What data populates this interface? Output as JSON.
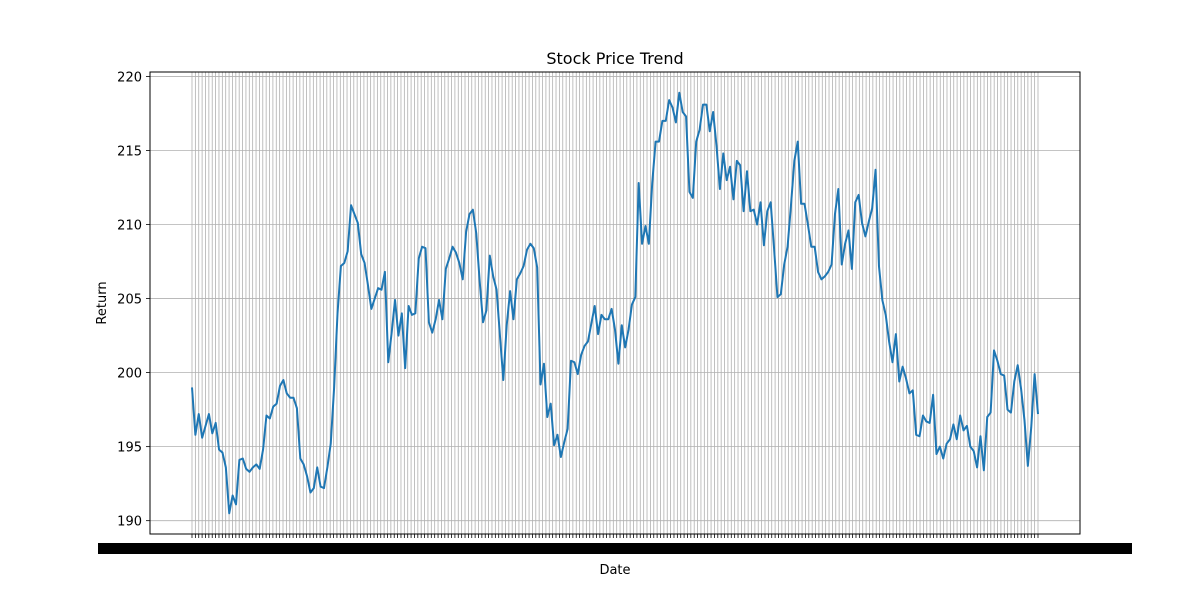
{
  "chart_data": {
    "type": "line",
    "title": "Stock Price Trend",
    "xlabel": "Date",
    "ylabel": "Return",
    "ylim": [
      189.1,
      220.3
    ],
    "yticks": [
      190,
      195,
      200,
      205,
      210,
      215,
      220
    ],
    "grid": true,
    "line_color": "#1f77b4",
    "grid_color": "#b0b0b0",
    "x_tick_count": 252,
    "series": [
      {
        "values": [
          199.0,
          195.8,
          197.2,
          195.6,
          196.4,
          197.2,
          195.9,
          196.6,
          194.8,
          194.6,
          193.6,
          190.5,
          191.7,
          191.1,
          194.1,
          194.2,
          193.5,
          193.3,
          193.6,
          193.8,
          193.5,
          194.8,
          197.1,
          196.9,
          197.7,
          197.9,
          199.1,
          199.5,
          198.6,
          198.3,
          198.3,
          197.6,
          194.2,
          193.8,
          193.0,
          191.9,
          192.2,
          193.6,
          192.3,
          192.2,
          193.6,
          195.2,
          199.0,
          204.0,
          207.2,
          207.4,
          208.2,
          211.3,
          210.7,
          210.1,
          208.0,
          207.4,
          205.9,
          204.3,
          205.0,
          205.7,
          205.6,
          206.8,
          200.7,
          202.7,
          204.9,
          202.5,
          204.0,
          200.3,
          204.5,
          203.9,
          204.0,
          207.7,
          208.5,
          208.4,
          203.4,
          202.7,
          203.6,
          204.9,
          203.6,
          207.0,
          207.7,
          208.5,
          208.1,
          207.4,
          206.3,
          209.5,
          210.7,
          211.0,
          209.4,
          206.2,
          203.4,
          204.2,
          207.9,
          206.5,
          205.6,
          202.5,
          199.5,
          203.2,
          205.5,
          203.6,
          206.3,
          206.7,
          207.2,
          208.3,
          208.7,
          208.4,
          207.1,
          199.2,
          200.6,
          197.0,
          197.9,
          195.1,
          195.8,
          194.3,
          195.3,
          196.2,
          200.8,
          200.7,
          199.9,
          201.2,
          201.8,
          202.1,
          203.3,
          204.5,
          202.6,
          203.9,
          203.6,
          203.6,
          204.3,
          202.9,
          200.6,
          203.2,
          201.7,
          202.9,
          204.6,
          205.1,
          212.8,
          208.7,
          209.9,
          208.7,
          212.8,
          215.6,
          215.6,
          217.0,
          217.0,
          218.4,
          217.9,
          216.9,
          218.9,
          217.6,
          217.3,
          212.2,
          211.8,
          215.6,
          216.4,
          218.1,
          218.1,
          216.3,
          217.6,
          215.3,
          212.4,
          214.8,
          213.0,
          213.9,
          211.7,
          214.3,
          214.0,
          210.9,
          213.6,
          210.9,
          211.0,
          210.0,
          211.5,
          208.6,
          210.9,
          211.5,
          208.4,
          205.1,
          205.3,
          207.3,
          208.5,
          211.3,
          214.3,
          215.6,
          211.4,
          211.4,
          210.0,
          208.5,
          208.5,
          206.8,
          206.3,
          206.5,
          206.8,
          207.3,
          210.7,
          212.4,
          207.3,
          208.7,
          209.6,
          207.0,
          211.5,
          212.0,
          210.1,
          209.2,
          210.2,
          211.1,
          213.7,
          207.2,
          204.9,
          203.9,
          202.1,
          200.7,
          202.6,
          199.4,
          200.4,
          199.6,
          198.6,
          198.8,
          195.8,
          195.7,
          197.1,
          196.7,
          196.6,
          198.5,
          194.5,
          195.0,
          194.2,
          195.2,
          195.5,
          196.5,
          195.5,
          197.1,
          196.1,
          196.4,
          195.0,
          194.7,
          193.6,
          195.7,
          193.4,
          197.0,
          197.3,
          201.5,
          200.8,
          199.9,
          199.8,
          197.5,
          197.3,
          199.4,
          200.5,
          198.9,
          196.8,
          193.7,
          196.3,
          199.9,
          197.2
        ]
      }
    ]
  }
}
